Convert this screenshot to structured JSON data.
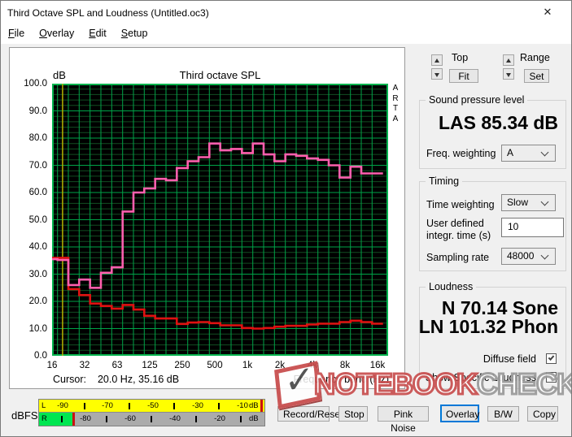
{
  "window": {
    "title": "Third Octave SPL and Loudness (Untitled.oc3)",
    "close_label": "✕"
  },
  "menu": {
    "items": [
      {
        "label": "File"
      },
      {
        "label": "Overlay"
      },
      {
        "label": "Edit"
      },
      {
        "label": "Setup"
      }
    ]
  },
  "chart": {
    "title": "Third octave SPL",
    "y_unit": "dB",
    "arta_label": "ARTA",
    "cursor_label": "Cursor:",
    "cursor_value": "20.0 Hz, 35.16 dB",
    "x_axis_label": "Frequency band (Hz)"
  },
  "chart_data": {
    "type": "line",
    "subtype": "third-octave-step",
    "title": "Third octave SPL",
    "ylabel": "dB",
    "xlabel": "Frequency band (Hz)",
    "ylim": [
      0,
      100
    ],
    "y_tick_labels": [
      "100.0",
      "90.0",
      "80.0",
      "70.0",
      "60.0",
      "50.0",
      "40.0",
      "30.0",
      "20.0",
      "10.0",
      "0.0"
    ],
    "x_tick_labels": [
      "16",
      "32",
      "63",
      "125",
      "250",
      "500",
      "1k",
      "2k",
      "4k",
      "8k",
      "16k"
    ],
    "categories": [
      16,
      20,
      25,
      31.5,
      40,
      50,
      63,
      80,
      100,
      125,
      160,
      200,
      250,
      315,
      400,
      500,
      630,
      800,
      1000,
      1250,
      1600,
      2000,
      2500,
      3150,
      4000,
      5000,
      6300,
      8000,
      10000,
      12500,
      16000
    ],
    "series": [
      {
        "name": "Third octave SPL",
        "color": "#ff5fae",
        "values": [
          35.5,
          35.2,
          26,
          28,
          25,
          30.5,
          32.5,
          53,
          60,
          61.5,
          65,
          64.5,
          69,
          71.5,
          73,
          78,
          75.5,
          76,
          74.5,
          78,
          74,
          71.5,
          74,
          73.5,
          72.5,
          72,
          70,
          65.5,
          69.5,
          67,
          67
        ]
      },
      {
        "name": "Noise floor",
        "color": "#df1111",
        "values": [
          36,
          36,
          24.5,
          22.3,
          19.2,
          18.3,
          17.3,
          18.7,
          17,
          14.7,
          13.7,
          13.7,
          11.7,
          12.2,
          12.4,
          12,
          11.2,
          11.2,
          10.2,
          10,
          10.2,
          10.7,
          11,
          11,
          11.5,
          11.8,
          11.8,
          12.4,
          12.9,
          12.4,
          11.8
        ]
      }
    ],
    "cursor": {
      "freq_hz": 20.0,
      "level_db": 35.16,
      "color": "#b5b100"
    },
    "grid": {
      "background": "#000000",
      "major_color": "#00a348",
      "minor_color": "#124e22",
      "border_color": "#00b34d"
    },
    "legend_position": "none"
  },
  "scale_controls": {
    "top_label": "Top",
    "fit_button": "Fit",
    "range_label": "Range",
    "set_button": "Set"
  },
  "spl": {
    "group_label": "Sound pressure level",
    "value": "LAS 85.34 dB",
    "freq_weighting_label": "Freq. weighting",
    "freq_weighting_value": "A"
  },
  "timing": {
    "group_label": "Timing",
    "time_weighting_label": "Time weighting",
    "time_weighting_value": "Slow",
    "integr_label_line1": "User defined",
    "integr_label_line2": "integr. time (s)",
    "integr_value": "10",
    "sampling_rate_label": "Sampling rate",
    "sampling_rate_value": "48000"
  },
  "loudness": {
    "group_label": "Loudness",
    "sone_value": "N 70.14 Sone",
    "phon_value": "LN 101.32 Phon",
    "diffuse_field_label": "Diffuse field",
    "diffuse_field_checked": true,
    "show_specific_label": "Show Specific Loudness",
    "show_specific_checked": false
  },
  "meter": {
    "label": "dBFS",
    "left_channel_labels": [
      "L",
      "-90",
      "-70",
      "-50",
      "-30",
      "-10",
      "dB"
    ],
    "right_channel_labels": [
      "R",
      "-80",
      "-60",
      "-40",
      "-20",
      "dB"
    ],
    "left_fill_pct": 100,
    "right_fill_pct": 15,
    "colors": {
      "left_fill": "#ffff00",
      "right_fill": "#00e651",
      "peak": "#cc1111",
      "empty": "#ababab"
    }
  },
  "buttons": {
    "record": "Record/Reset",
    "stop": "Stop",
    "pink_noise": "Pink Noise",
    "overlay": "Overlay",
    "bw": "B/W",
    "copy": "Copy"
  },
  "watermark": {
    "check_glyph": "✓",
    "part1": "NOTEBOOK",
    "part2": "CHECK",
    "red": "#c95050",
    "gray": "#9b9b9b"
  }
}
